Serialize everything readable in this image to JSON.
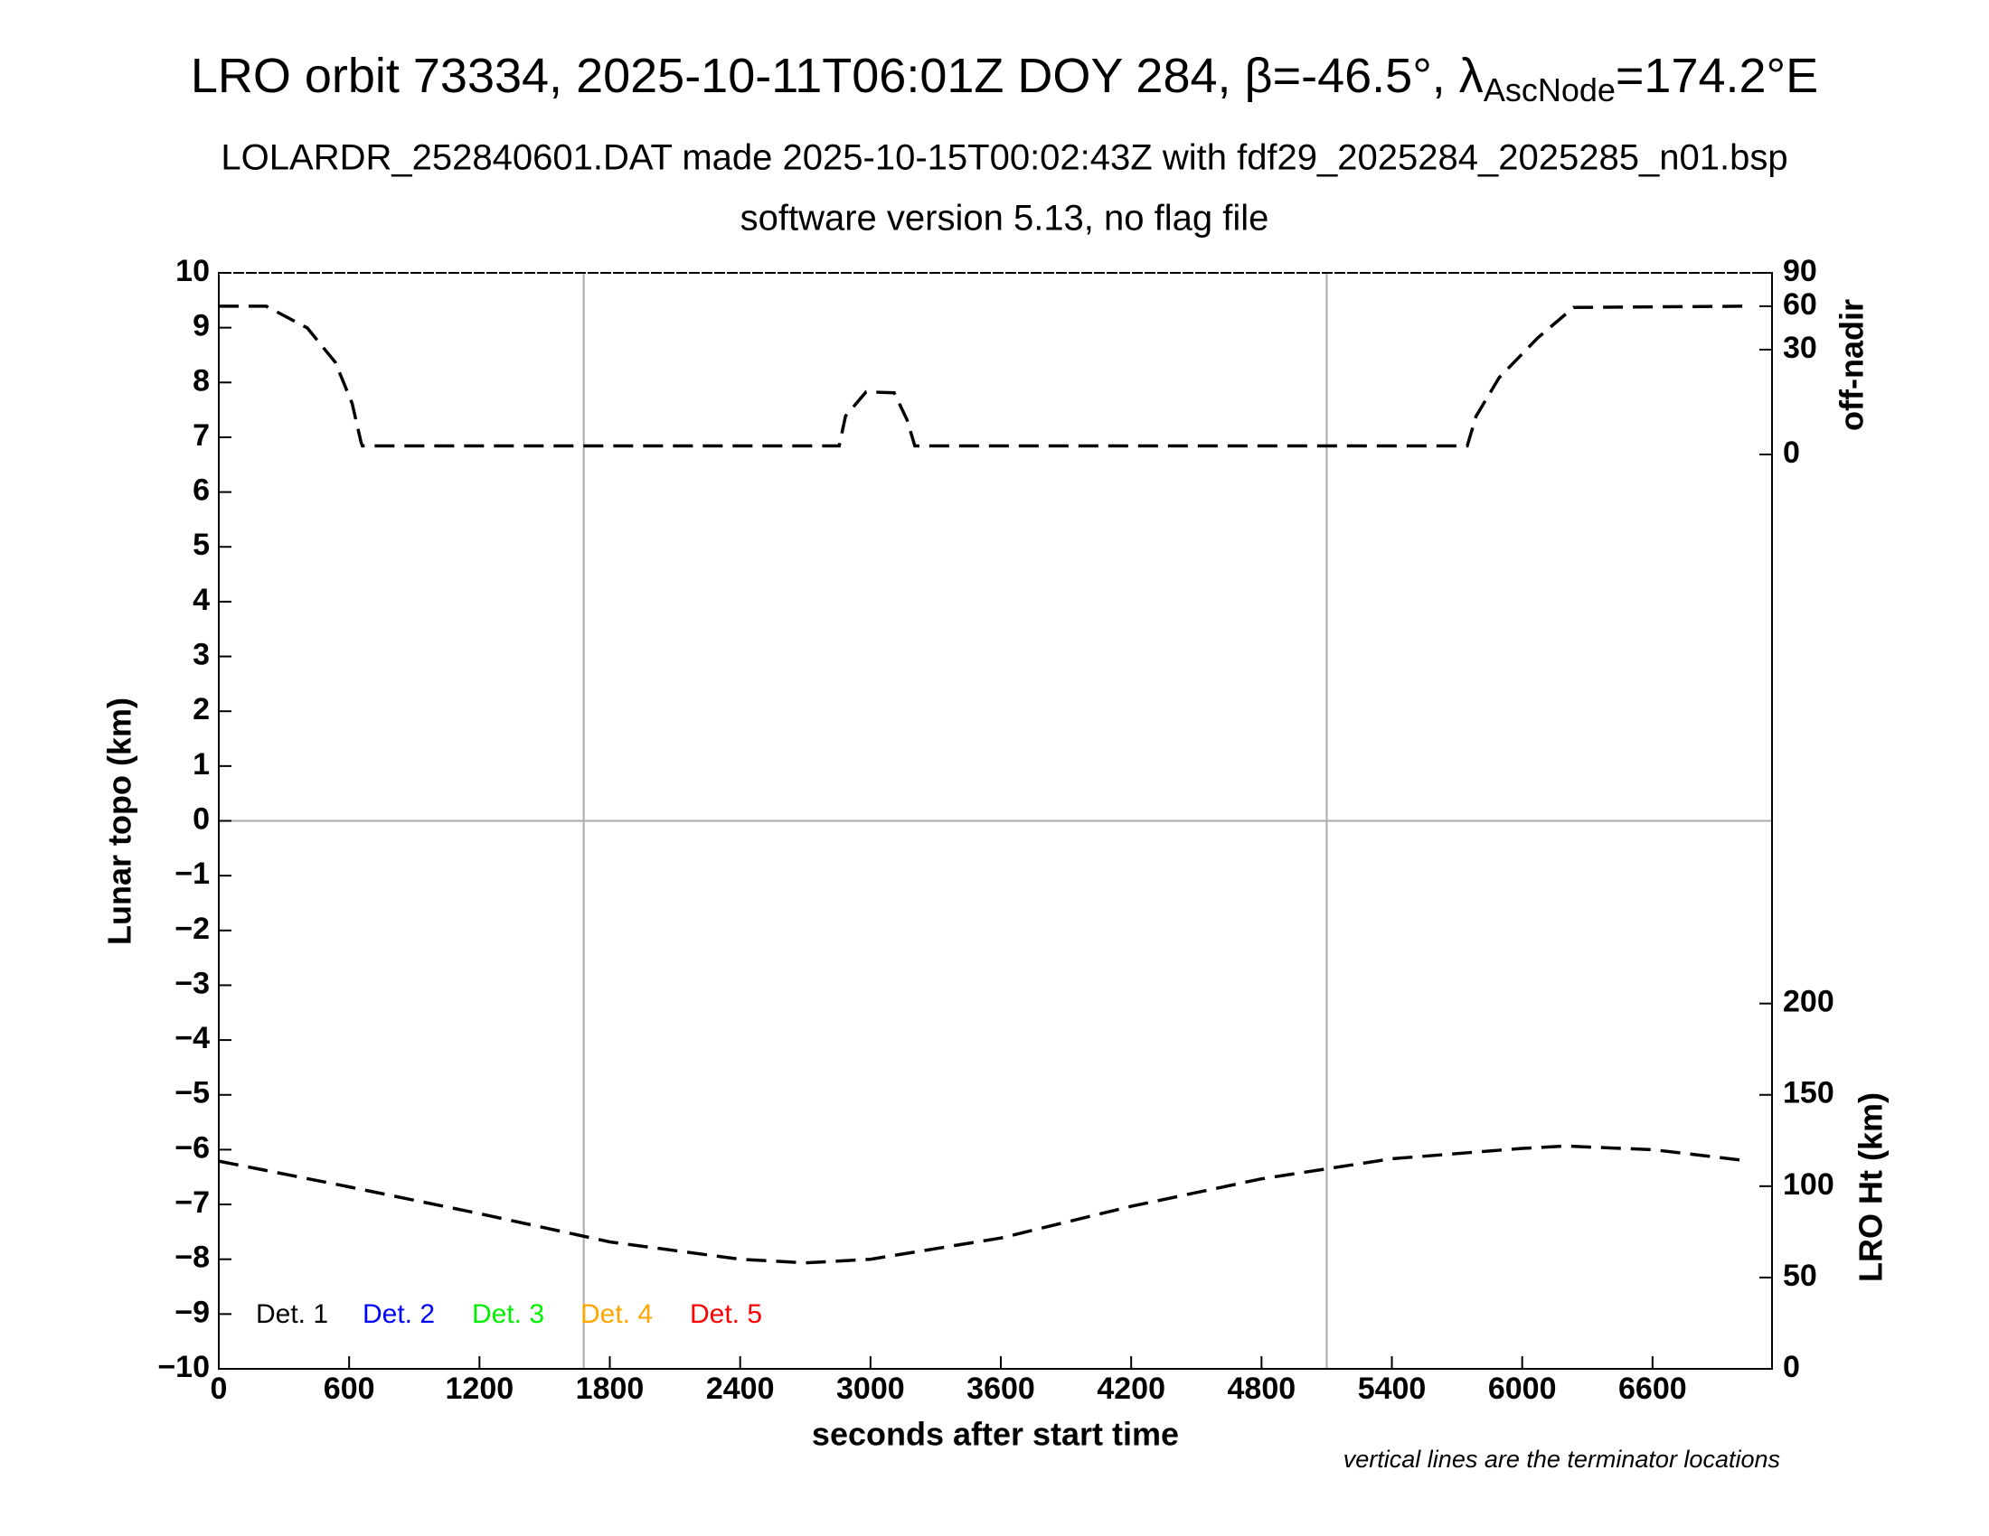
{
  "chart_data": {
    "type": "line",
    "title_parts": [
      "LRO orbit 73334, 2025-10-11T06:01Z DOY 284, β=-46.5°, λ",
      "AscNode",
      "=174.2°E"
    ],
    "subtitle": "LOLARDR_252840601.DAT made 2025-10-15T00:02:43Z with fdf29_2025284_2025285_n01.bsp",
    "subtitle2": "software version 5.13, no flag file",
    "x_label": "seconds after start time",
    "y_label": "Lunar topo (km)",
    "y2_label": "off-nadir",
    "y3_label": "LRO Ht (km)",
    "footnote": "vertical lines are the terminator locations",
    "xlim": [
      0,
      7150
    ],
    "xticks": [
      0,
      600,
      1200,
      1800,
      2400,
      3000,
      3600,
      4200,
      4800,
      5400,
      6000,
      6600
    ],
    "ylim": [
      -10,
      10
    ],
    "yticks": [
      {
        "value": -10,
        "label": "−10"
      },
      {
        "value": -9,
        "label": "−9"
      },
      {
        "value": -8,
        "label": "−8"
      },
      {
        "value": -7,
        "label": "−7"
      },
      {
        "value": -6,
        "label": "−6"
      },
      {
        "value": -5,
        "label": "−5"
      },
      {
        "value": -4,
        "label": "−4"
      },
      {
        "value": -3,
        "label": "−3"
      },
      {
        "value": -2,
        "label": "−2"
      },
      {
        "value": -1,
        "label": "−1"
      },
      0,
      1,
      2,
      3,
      4,
      5,
      6,
      7,
      8,
      9,
      10
    ],
    "y2lim": [
      0,
      90
    ],
    "y2scale": "sqrt",
    "y2ticks": [
      0,
      30,
      60,
      90
    ],
    "y3lim": [
      0,
      600
    ],
    "y3ticks": [
      0,
      50,
      100,
      150,
      200
    ],
    "zero_line": true,
    "terminators": [
      1680,
      5100
    ],
    "legend": [
      {
        "name": "Det. 1",
        "color": "#000000"
      },
      {
        "name": "Det. 2",
        "color": "#0000ff"
      },
      {
        "name": "Det. 3",
        "color": "#00ee00"
      },
      {
        "name": "Det. 4",
        "color": "#ffa500"
      },
      {
        "name": "Det. 5",
        "color": "#ff0000"
      }
    ],
    "series": [
      {
        "name": "off-nadir",
        "axis": "y2",
        "color": "#000000",
        "dashed": true,
        "x": [
          0,
          218,
          407,
          537,
          614,
          655,
          661,
          2856,
          2885,
          2980,
          3109,
          3168,
          3204,
          5747,
          5788,
          5894,
          6071,
          6236,
          7015
        ],
        "values": [
          60,
          60,
          43.7,
          23.1,
          7.1,
          0.4,
          0.2,
          0.2,
          4.0,
          10.7,
          10.4,
          3.3,
          0.2,
          0.2,
          4.0,
          16.1,
          37,
          59,
          60
        ]
      },
      {
        "name": "LRO Ht",
        "axis": "y3",
        "color": "#000000",
        "dashed": true,
        "x": [
          0,
          600,
          1200,
          1800,
          2400,
          2700,
          3000,
          3600,
          4200,
          4800,
          5100,
          5400,
          6000,
          6200,
          6600,
          7000
        ],
        "values": [
          113.7,
          99.6,
          85,
          69.5,
          60,
          58,
          60,
          71.6,
          89,
          104,
          109.5,
          115,
          120.7,
          122,
          120,
          114.4
        ]
      }
    ]
  }
}
